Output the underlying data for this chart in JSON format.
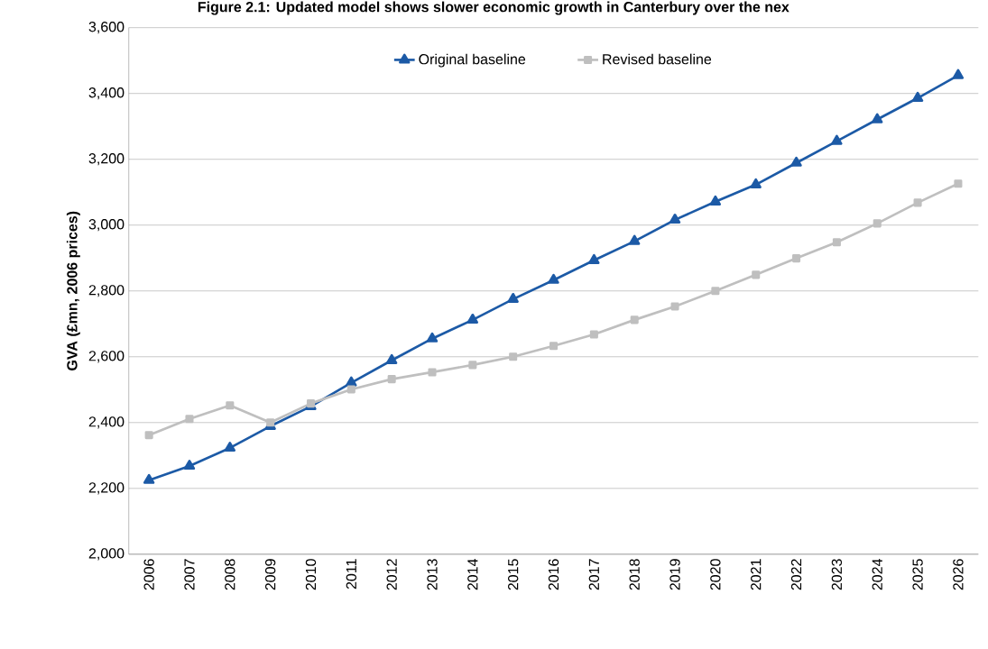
{
  "chart_data": {
    "type": "line",
    "title": "Figure 2.1: Updated model shows slower economic growth in Canterbury over the nex",
    "ylabel": "GVA (£mn, 2006 prices)",
    "categories": [
      "2006",
      "2007",
      "2008",
      "2009",
      "2010",
      "2011",
      "2012",
      "2013",
      "2014",
      "2015",
      "2016",
      "2017",
      "2018",
      "2019",
      "2020",
      "2021",
      "2022",
      "2023",
      "2024",
      "2025",
      "2026"
    ],
    "series": [
      {
        "name": "Original baseline",
        "color": "#1c5aa6",
        "marker": "triangle",
        "values": [
          2225,
          2268,
          2323,
          2389,
          2449,
          2521,
          2589,
          2655,
          2712,
          2775,
          2833,
          2893,
          2951,
          3016,
          3071,
          3123,
          3189,
          3255,
          3321,
          3386,
          3455
        ]
      },
      {
        "name": "Revised baseline",
        "color": "#bfbfbf",
        "marker": "square",
        "values": [
          2362,
          2411,
          2452,
          2400,
          2458,
          2501,
          2532,
          2553,
          2575,
          2600,
          2633,
          2668,
          2712,
          2753,
          2800,
          2849,
          2899,
          2948,
          3005,
          3068,
          3126
        ]
      }
    ],
    "ylim": [
      2000,
      3600
    ],
    "yticks": [
      {
        "value": 2000,
        "label": "2,000"
      },
      {
        "value": 2200,
        "label": "2,200"
      },
      {
        "value": 2400,
        "label": "2,400"
      },
      {
        "value": 2600,
        "label": "2,600"
      },
      {
        "value": 2800,
        "label": "2,800"
      },
      {
        "value": 3000,
        "label": "3,000"
      },
      {
        "value": 3200,
        "label": "3,200"
      },
      {
        "value": 3400,
        "label": "3,400"
      },
      {
        "value": 3600,
        "label": "3,600"
      }
    ],
    "grid": "y",
    "legend": "top"
  }
}
